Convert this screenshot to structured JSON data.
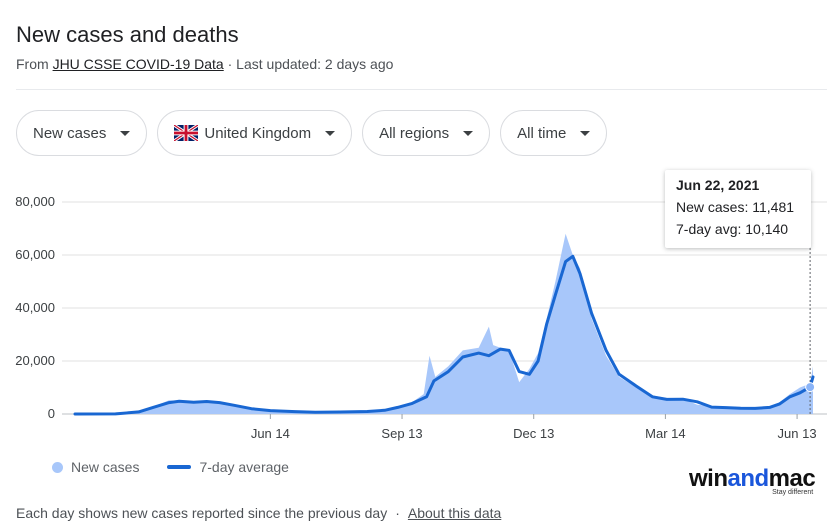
{
  "header": {
    "title": "New cases and deaths",
    "source_prefix": "From ",
    "source_link": "JHU CSSE COVID-19 Data",
    "updated": " · Last updated: 2 days ago"
  },
  "filters": [
    {
      "label": "New cases"
    },
    {
      "label": "United Kingdom",
      "icon": "uk-flag-icon"
    },
    {
      "label": "All regions"
    },
    {
      "label": "All time"
    }
  ],
  "tooltip": {
    "date": "Jun 22, 2021",
    "new_cases": "New cases: 11,481",
    "avg": "7-day avg: 10,140"
  },
  "legend": {
    "new_cases": "New cases",
    "avg": "7-day average"
  },
  "watermark": {
    "pre": "win",
    "mid": "and",
    "post": "mac",
    "tag": "Stay different"
  },
  "footer": {
    "note": "Each day shows new cases reported since the previous day",
    "sep": "·",
    "link": "About this data"
  },
  "colors": {
    "bars": "#a8c7fa",
    "avg_line": "#1967d2",
    "grid": "#e0e0e0"
  },
  "chart_data": {
    "type": "area",
    "x_start": "2020-01-31",
    "x_end": "2021-06-24",
    "ylim": [
      0,
      80000
    ],
    "yticks": [
      0,
      20000,
      40000,
      60000,
      80000
    ],
    "ytick_labels": [
      "0",
      "20,000",
      "40,000",
      "60,000",
      "80,000"
    ],
    "xticks": [
      {
        "date": "2020-06-14",
        "label": "Jun 14"
      },
      {
        "date": "2020-09-13",
        "label": "Sep 13"
      },
      {
        "date": "2020-12-13",
        "label": "Dec 13"
      },
      {
        "date": "2021-03-14",
        "label": "Mar 14"
      },
      {
        "date": "2021-06-13",
        "label": "Jun 13"
      }
    ],
    "grid": true,
    "series": [
      {
        "name": "7-day average",
        "points": [
          [
            "2020-01-31",
            0
          ],
          [
            "2020-02-28",
            50
          ],
          [
            "2020-03-15",
            800
          ],
          [
            "2020-03-25",
            2500
          ],
          [
            "2020-04-05",
            4300
          ],
          [
            "2020-04-12",
            4800
          ],
          [
            "2020-04-22",
            4400
          ],
          [
            "2020-05-01",
            4700
          ],
          [
            "2020-05-10",
            4300
          ],
          [
            "2020-05-20",
            3300
          ],
          [
            "2020-06-01",
            2000
          ],
          [
            "2020-06-14",
            1300
          ],
          [
            "2020-07-01",
            900
          ],
          [
            "2020-07-15",
            650
          ],
          [
            "2020-08-01",
            750
          ],
          [
            "2020-08-20",
            950
          ],
          [
            "2020-09-01",
            1400
          ],
          [
            "2020-09-10",
            2500
          ],
          [
            "2020-09-20",
            4000
          ],
          [
            "2020-09-30",
            6500
          ],
          [
            "2020-10-05",
            12500
          ],
          [
            "2020-10-15",
            16000
          ],
          [
            "2020-10-25",
            21500
          ],
          [
            "2020-11-05",
            23000
          ],
          [
            "2020-11-12",
            22000
          ],
          [
            "2020-11-20",
            24500
          ],
          [
            "2020-11-26",
            24000
          ],
          [
            "2020-12-03",
            16000
          ],
          [
            "2020-12-10",
            15000
          ],
          [
            "2020-12-16",
            20000
          ],
          [
            "2020-12-22",
            34000
          ],
          [
            "2020-12-28",
            45000
          ],
          [
            "2021-01-04",
            57500
          ],
          [
            "2021-01-09",
            59500
          ],
          [
            "2021-01-14",
            53000
          ],
          [
            "2021-01-22",
            38000
          ],
          [
            "2021-02-01",
            24000
          ],
          [
            "2021-02-10",
            15000
          ],
          [
            "2021-02-22",
            10500
          ],
          [
            "2021-03-05",
            6500
          ],
          [
            "2021-03-15",
            5500
          ],
          [
            "2021-03-26",
            5600
          ],
          [
            "2021-04-05",
            4600
          ],
          [
            "2021-04-15",
            2600
          ],
          [
            "2021-04-25",
            2400
          ],
          [
            "2021-05-05",
            2200
          ],
          [
            "2021-05-15",
            2100
          ],
          [
            "2021-05-25",
            2500
          ],
          [
            "2021-06-01",
            3800
          ],
          [
            "2021-06-08",
            6500
          ],
          [
            "2021-06-15",
            8000
          ],
          [
            "2021-06-22",
            10140
          ],
          [
            "2021-06-24",
            14000
          ]
        ]
      },
      {
        "name": "New cases",
        "points": [
          [
            "2020-01-31",
            0
          ],
          [
            "2020-02-28",
            80
          ],
          [
            "2020-03-15",
            900
          ],
          [
            "2020-03-25",
            2800
          ],
          [
            "2020-04-05",
            5200
          ],
          [
            "2020-04-12",
            5000
          ],
          [
            "2020-04-22",
            4900
          ],
          [
            "2020-05-01",
            5100
          ],
          [
            "2020-05-10",
            4500
          ],
          [
            "2020-05-20",
            3500
          ],
          [
            "2020-06-01",
            2200
          ],
          [
            "2020-06-14",
            1400
          ],
          [
            "2020-07-01",
            1000
          ],
          [
            "2020-07-15",
            700
          ],
          [
            "2020-08-01",
            850
          ],
          [
            "2020-08-20",
            1100
          ],
          [
            "2020-09-01",
            1700
          ],
          [
            "2020-09-10",
            3000
          ],
          [
            "2020-09-20",
            4500
          ],
          [
            "2020-09-28",
            7500
          ],
          [
            "2020-10-02",
            22000
          ],
          [
            "2020-10-06",
            14000
          ],
          [
            "2020-10-15",
            18000
          ],
          [
            "2020-10-25",
            24000
          ],
          [
            "2020-11-05",
            25000
          ],
          [
            "2020-11-12",
            33000
          ],
          [
            "2020-11-15",
            26000
          ],
          [
            "2020-11-20",
            25000
          ],
          [
            "2020-11-26",
            24000
          ],
          [
            "2020-12-03",
            12000
          ],
          [
            "2020-12-10",
            17000
          ],
          [
            "2020-12-16",
            23000
          ],
          [
            "2020-12-22",
            36000
          ],
          [
            "2020-12-28",
            50000
          ],
          [
            "2021-01-04",
            68000
          ],
          [
            "2021-01-09",
            60000
          ],
          [
            "2021-01-14",
            55000
          ],
          [
            "2021-01-22",
            36000
          ],
          [
            "2021-02-01",
            22000
          ],
          [
            "2021-02-10",
            14000
          ],
          [
            "2021-02-22",
            10000
          ],
          [
            "2021-03-05",
            7000
          ],
          [
            "2021-03-15",
            6000
          ],
          [
            "2021-03-26",
            5800
          ],
          [
            "2021-04-05",
            3500
          ],
          [
            "2021-04-15",
            3000
          ],
          [
            "2021-04-25",
            2500
          ],
          [
            "2021-05-05",
            2300
          ],
          [
            "2021-05-15",
            2200
          ],
          [
            "2021-05-25",
            3000
          ],
          [
            "2021-06-01",
            4500
          ],
          [
            "2021-06-08",
            7500
          ],
          [
            "2021-06-15",
            10000
          ],
          [
            "2021-06-22",
            11481
          ],
          [
            "2021-06-24",
            18000
          ]
        ]
      }
    ],
    "highlight": {
      "date": "2021-06-22",
      "new_cases": 11481,
      "avg": 10140
    }
  }
}
